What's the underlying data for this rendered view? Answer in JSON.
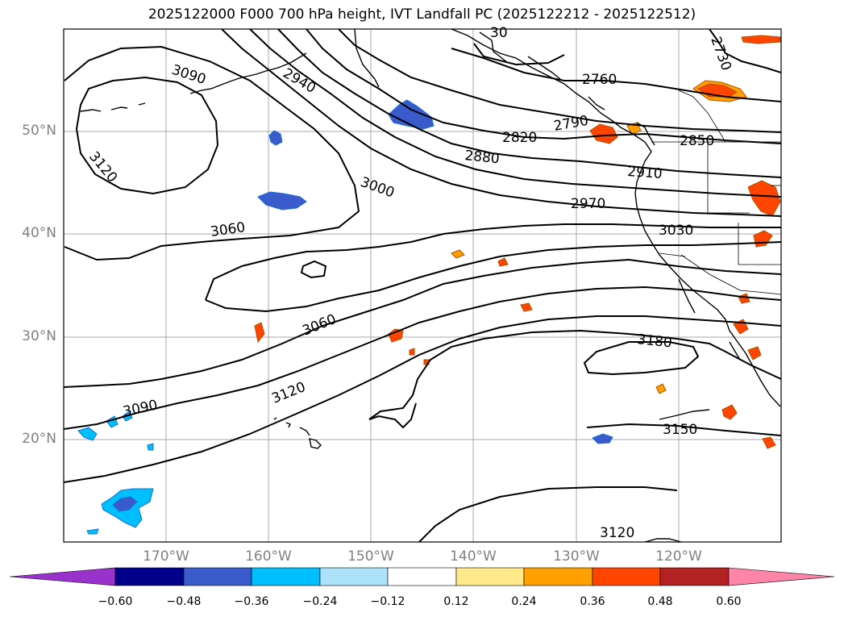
{
  "title": "2025122000 F000 700 hPa height, IVT Landfall PC (2025122212 - 2025122512)",
  "map": {
    "lat_labels": [
      "50°N",
      "40°N",
      "30°N",
      "20°N"
    ],
    "lon_labels": [
      "170°W",
      "160°W",
      "150°W",
      "140°W",
      "130°W",
      "120°W"
    ],
    "contour_labels": [
      "2730",
      "2760",
      "2790",
      "2820",
      "2850",
      "2880",
      "2910",
      "2940",
      "2970",
      "3000",
      "3030",
      "3060",
      "3060",
      "3090",
      "3090",
      "3120",
      "3120",
      "3120",
      "3150",
      "3180",
      "30"
    ],
    "contour_units": "m (700 hPa geopotential height)"
  },
  "colorbar": {
    "ticks": [
      "−0.60",
      "−0.48",
      "−0.36",
      "−0.24",
      "−0.12",
      "0.12",
      "0.24",
      "0.36",
      "0.48",
      "0.60"
    ],
    "colors": [
      "#9932CC",
      "#00008B",
      "#3A5BCC",
      "#00BFFF",
      "#ADE3FA",
      "#FFFFFF",
      "#FFE98A",
      "#FFA000",
      "#FF4500",
      "#B22222",
      "#FF85A8"
    ]
  }
}
